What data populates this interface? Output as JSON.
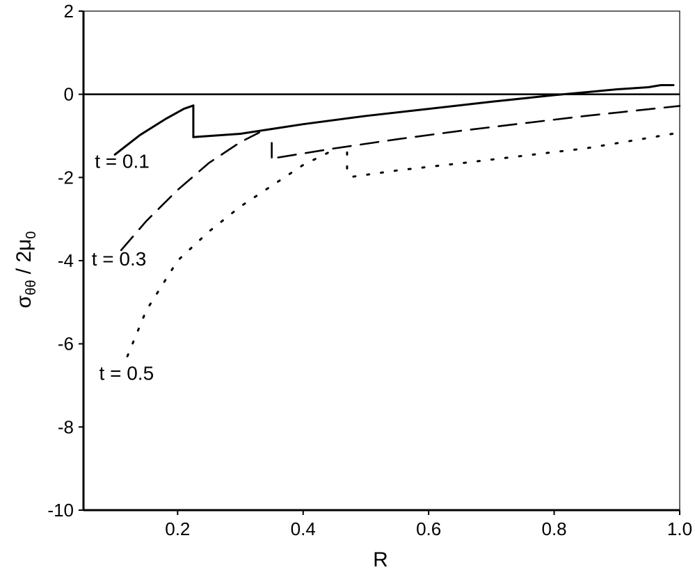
{
  "chart_data": {
    "type": "line",
    "xlabel": "R",
    "ylabel": {
      "sigma": "σ",
      "sub1": "θθ",
      "slash": " / 2",
      "mu": "μ",
      "sub2": "0"
    },
    "xlim": [
      0.05,
      1.0
    ],
    "ylim": [
      -10,
      2
    ],
    "x_ticks": [
      {
        "value": 0.2,
        "label": "0.2"
      },
      {
        "value": 0.4,
        "label": "0.4"
      },
      {
        "value": 0.6,
        "label": "0.6"
      },
      {
        "value": 0.8,
        "label": "0.8"
      },
      {
        "value": 1.0,
        "label": "1.0"
      }
    ],
    "y_ticks": [
      {
        "value": 2,
        "label": "2"
      },
      {
        "value": 0,
        "label": "0"
      },
      {
        "value": -2,
        "label": "-2"
      },
      {
        "value": -4,
        "label": "-4"
      },
      {
        "value": -6,
        "label": "-6"
      },
      {
        "value": -8,
        "label": "-8"
      },
      {
        "value": -10,
        "label": "-10"
      }
    ],
    "reference_line": {
      "y": 0
    },
    "series": [
      {
        "name": "t = 0.1",
        "style": "solid",
        "segments": [
          {
            "x": [
              0.1,
              0.14,
              0.18,
              0.21,
              0.225
            ],
            "y": [
              -1.45,
              -0.98,
              -0.6,
              -0.35,
              -0.27
            ]
          },
          {
            "x": [
              0.225,
              0.225
            ],
            "y": [
              -0.27,
              -1.03
            ]
          },
          {
            "x": [
              0.225,
              0.3,
              0.4,
              0.5,
              0.6,
              0.7,
              0.8,
              0.85,
              0.9,
              0.95,
              0.97,
              0.99
            ],
            "y": [
              -1.03,
              -0.95,
              -0.72,
              -0.52,
              -0.35,
              -0.18,
              -0.02,
              0.05,
              0.12,
              0.17,
              0.22,
              0.22
            ]
          }
        ]
      },
      {
        "name": "t = 0.3",
        "style": "dashed",
        "segments": [
          {
            "x": [
              0.11,
              0.15,
              0.2,
              0.25,
              0.3,
              0.33
            ],
            "y": [
              -3.75,
              -3.05,
              -2.3,
              -1.65,
              -1.15,
              -0.92
            ]
          },
          {
            "x": [
              0.35,
              0.35
            ],
            "y": [
              -1.17,
              -1.52
            ]
          },
          {
            "x": [
              0.36,
              0.45,
              0.55,
              0.65,
              0.75,
              0.85,
              0.95,
              1.0
            ],
            "y": [
              -1.52,
              -1.3,
              -1.08,
              -0.88,
              -0.7,
              -0.52,
              -0.36,
              -0.28
            ]
          }
        ]
      },
      {
        "name": "t = 0.5",
        "style": "dotted",
        "segments": [
          {
            "x": [
              0.12,
              0.15,
              0.2,
              0.25,
              0.3,
              0.35,
              0.4,
              0.45
            ],
            "y": [
              -6.3,
              -5.2,
              -4.0,
              -3.3,
              -2.7,
              -2.2,
              -1.7,
              -1.33
            ]
          },
          {
            "x": [
              0.47,
              0.47
            ],
            "y": [
              -1.4,
              -2.02
            ]
          },
          {
            "x": [
              0.48,
              0.55,
              0.65,
              0.75,
              0.85,
              0.95,
              1.0
            ],
            "y": [
              -1.98,
              -1.83,
              -1.66,
              -1.48,
              -1.3,
              -1.05,
              -0.92
            ]
          }
        ]
      }
    ],
    "annotations": [
      {
        "text": "t = 0.1",
        "x": 0.053,
        "y": -1.6
      },
      {
        "text": "t = 0.3",
        "x": 0.05,
        "y": -6.95
      },
      {
        "text": "t = 0.5",
        "x": 0.06,
        "y": -4.15
      }
    ]
  }
}
